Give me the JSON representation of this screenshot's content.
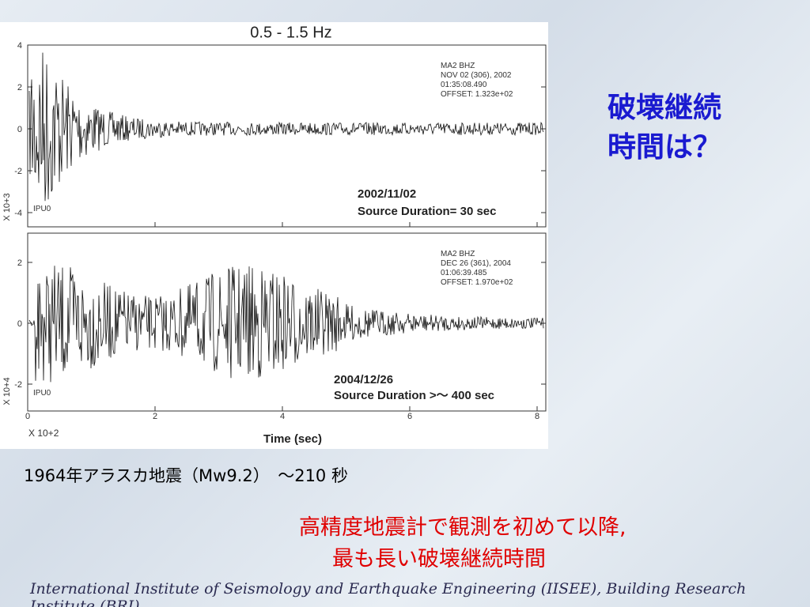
{
  "figure": {
    "title": "0.5 - 1.5 Hz",
    "panels": [
      {
        "station": [
          "MA2   BHZ",
          "NOV 02 (306), 2002",
          "01:35:08.490",
          "OFFSET:   1.323e+02"
        ],
        "code": "IPU0",
        "date": "2002/11/02",
        "duration": "Source Duration= 30 sec",
        "y_ticks": [
          "4",
          "2",
          "0",
          "-2",
          "-4"
        ],
        "y_scale": "X 10+3"
      },
      {
        "station": [
          "MA2   BHZ",
          "DEC 26 (361), 2004",
          "01:06:39.485",
          "OFFSET:   1.970e+02"
        ],
        "code": "IPU0",
        "date": "2004/12/26",
        "duration": "Source Duration >～ 400 sec",
        "y_ticks": [
          "2",
          "0",
          "-2"
        ],
        "y_scale": "X 10+4"
      }
    ],
    "x_ticks": [
      "0",
      "2",
      "4",
      "6",
      "8"
    ],
    "x_scale": "X 10+2",
    "x_label": "Time (sec)"
  },
  "question": [
    "破壊継続",
    "時間は？"
  ],
  "note": "1964年アラスカ地震（Mw9.2）　～210 秒",
  "highlight": [
    "高精度地震計で観測を初めて以降,",
    "最も長い破壊継続時間"
  ],
  "footer": "International Institute of Seismology and Earthquake Engineering (IISEE), Building Research Institute (BRI)"
}
